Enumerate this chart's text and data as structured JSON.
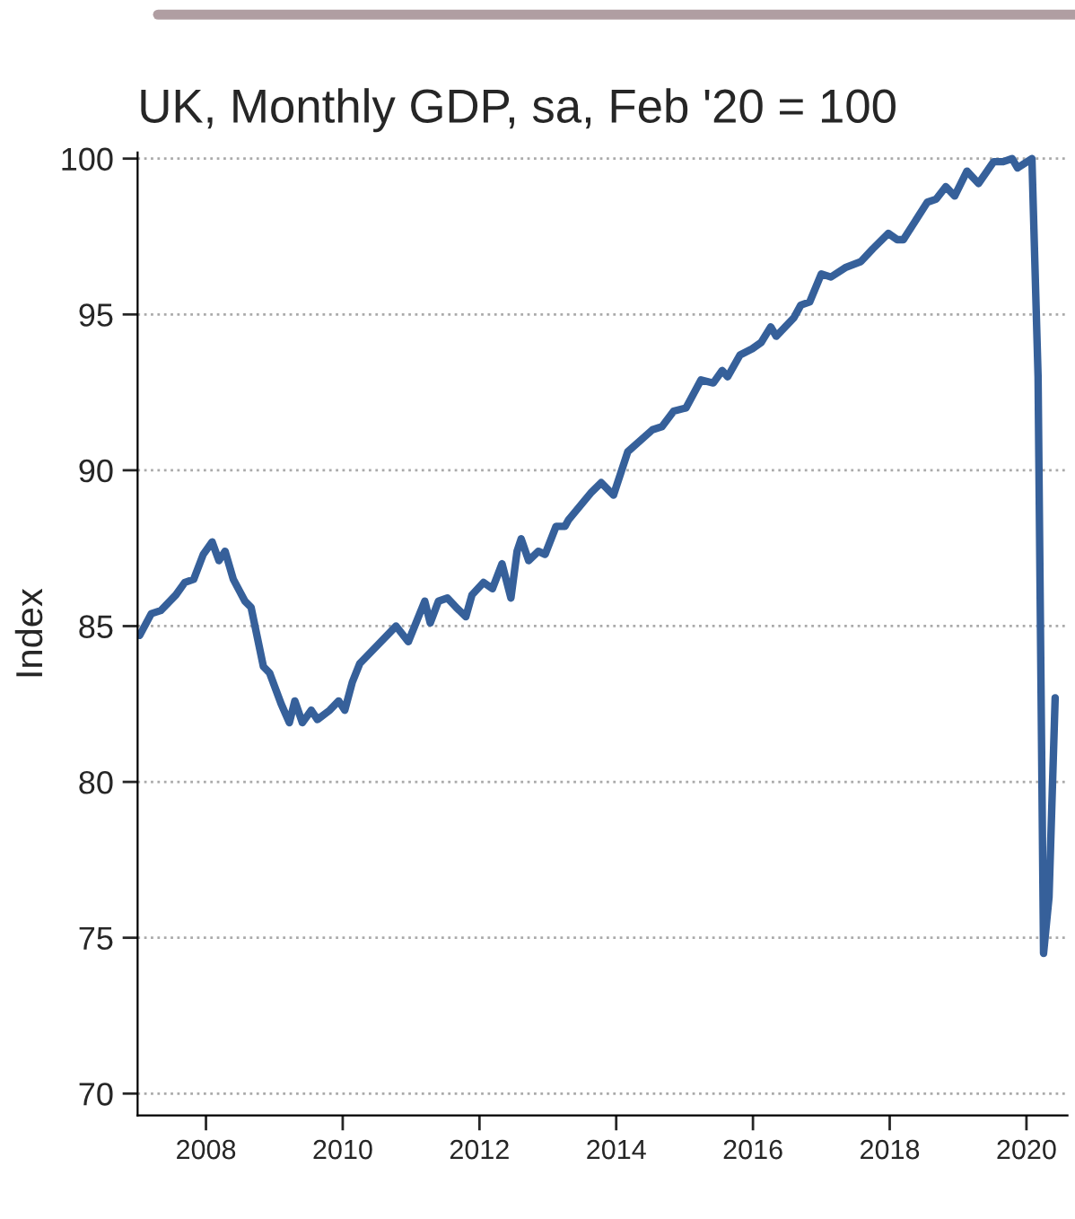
{
  "chart_data": {
    "type": "line",
    "title": "UK, Monthly GDP, sa, Feb '20 = 100",
    "ylabel": "Index",
    "x": [
      2007.03,
      2007.2,
      2007.34,
      2007.56,
      2007.69,
      2007.82,
      2007.96,
      2008.09,
      2008.19,
      2008.28,
      2008.4,
      2008.57,
      2008.66,
      2008.84,
      2008.93,
      2009.1,
      2009.22,
      2009.3,
      2009.41,
      2009.54,
      2009.63,
      2009.81,
      2009.94,
      2010.03,
      2010.14,
      2010.25,
      2010.47,
      2010.78,
      2010.96,
      2011.2,
      2011.28,
      2011.4,
      2011.53,
      2011.66,
      2011.8,
      2011.89,
      2012.06,
      2012.19,
      2012.33,
      2012.46,
      2012.55,
      2012.61,
      2012.72,
      2012.86,
      2012.96,
      2013.12,
      2013.25,
      2013.3,
      2013.64,
      2013.78,
      2013.96,
      2014.17,
      2014.53,
      2014.67,
      2014.84,
      2015.02,
      2015.24,
      2015.42,
      2015.55,
      2015.63,
      2015.81,
      2015.99,
      2016.12,
      2016.26,
      2016.34,
      2016.6,
      2016.7,
      2016.83,
      2017.0,
      2017.14,
      2017.35,
      2017.58,
      2017.75,
      2017.98,
      2018.11,
      2018.2,
      2018.55,
      2018.68,
      2018.82,
      2018.95,
      2019.13,
      2019.3,
      2019.52,
      2019.66,
      2019.79,
      2019.87,
      2020.08,
      2020.17,
      2020.25,
      2020.33,
      2020.42
    ],
    "series": [
      {
        "color": "#36609a",
        "values": [
          84.7,
          85.4,
          85.5,
          86.0,
          86.4,
          86.5,
          87.3,
          87.7,
          87.1,
          87.4,
          86.5,
          85.8,
          85.6,
          83.7,
          83.5,
          82.5,
          81.9,
          82.6,
          81.9,
          82.3,
          82.0,
          82.3,
          82.6,
          82.3,
          83.2,
          83.8,
          84.3,
          85.0,
          84.5,
          85.8,
          85.1,
          85.8,
          85.9,
          85.6,
          85.3,
          86.0,
          86.4,
          86.2,
          87.0,
          85.9,
          87.4,
          87.8,
          87.1,
          87.4,
          87.3,
          88.2,
          88.2,
          88.4,
          89.3,
          89.6,
          89.2,
          90.6,
          91.3,
          91.4,
          91.9,
          92.0,
          92.9,
          92.8,
          93.2,
          93.0,
          93.7,
          93.9,
          94.1,
          94.6,
          94.3,
          94.9,
          95.3,
          95.4,
          96.3,
          96.2,
          96.5,
          96.7,
          97.1,
          97.6,
          97.4,
          97.4,
          98.6,
          98.7,
          99.1,
          98.8,
          99.6,
          99.2,
          99.9,
          99.9,
          100.0,
          99.7,
          100.0,
          93.0,
          74.5,
          76.3,
          82.7
        ]
      }
    ],
    "xlim": [
      2007.0,
      2020.6
    ],
    "xticks": [
      2008,
      2010,
      2012,
      2014,
      2016,
      2018,
      2020
    ],
    "ylim": [
      69.3,
      100.2
    ],
    "yticks": [
      70,
      75,
      80,
      85,
      90,
      95,
      100
    ],
    "grid": "y",
    "line_style": "solid",
    "marker": "none"
  }
}
